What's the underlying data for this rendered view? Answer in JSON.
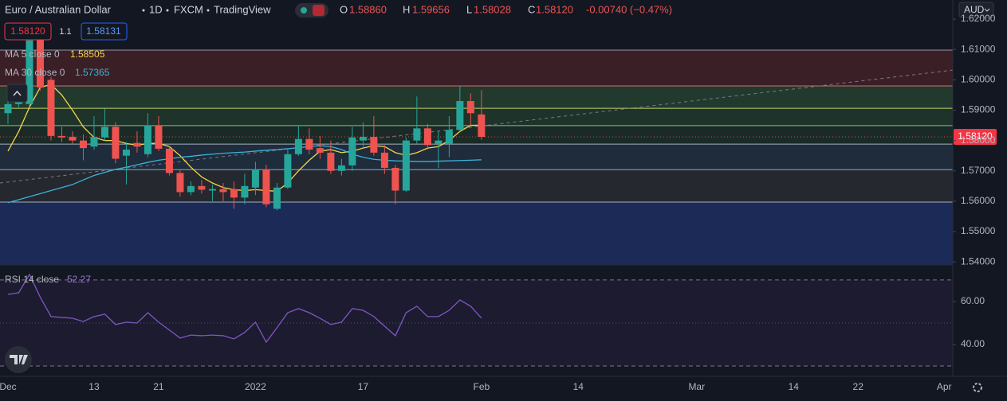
{
  "header": {
    "symbol": "Euro / Australian Dollar",
    "interval": "1D",
    "exchange": "FXCM",
    "source": "TradingView",
    "ohlc": [
      {
        "key": "O",
        "value": "1.58860"
      },
      {
        "key": "H",
        "value": "1.59656"
      },
      {
        "key": "L",
        "value": "1.58028"
      },
      {
        "key": "C",
        "value": "1.58120"
      }
    ],
    "change": "-0.00740 (−0.47%)"
  },
  "order_panel": {
    "sell": "1.58120",
    "spread": "1.1",
    "buy": "1.58131"
  },
  "currency": "AUD",
  "chart_data": [
    {
      "type": "candlestick",
      "x": [
        0,
        1,
        2,
        3,
        4,
        5,
        6,
        7,
        8,
        9,
        10,
        11,
        12,
        13,
        14,
        15,
        16,
        17,
        18,
        19,
        20,
        21,
        22,
        23,
        24,
        25,
        26,
        27,
        28,
        29,
        30,
        31,
        32,
        33,
        34,
        35,
        36,
        37,
        38,
        39,
        40,
        41,
        42,
        43,
        44
      ],
      "open": [
        1.589,
        1.592,
        1.592,
        1.6165,
        1.6,
        1.5815,
        1.5812,
        1.58,
        1.578,
        1.581,
        1.5845,
        1.575,
        1.5792,
        1.5755,
        1.585,
        1.5773,
        1.5693,
        1.563,
        1.565,
        1.5635,
        1.564,
        1.564,
        1.5612,
        1.5645,
        1.5705,
        1.5575,
        1.5645,
        1.5755,
        1.5805,
        1.5775,
        1.576,
        1.57,
        1.5718,
        1.58,
        1.5812,
        1.576,
        1.571,
        1.5635,
        1.58,
        1.584,
        1.579,
        1.579,
        1.5835,
        1.593,
        1.5886
      ],
      "high": [
        1.5935,
        1.5965,
        1.617,
        1.6185,
        1.601,
        1.5845,
        1.583,
        1.582,
        1.588,
        1.5905,
        1.586,
        1.5795,
        1.583,
        1.589,
        1.588,
        1.578,
        1.5705,
        1.5665,
        1.567,
        1.5655,
        1.566,
        1.5665,
        1.569,
        1.573,
        1.572,
        1.566,
        1.577,
        1.585,
        1.584,
        1.5815,
        1.58,
        1.574,
        1.5845,
        1.586,
        1.588,
        1.5785,
        1.572,
        1.581,
        1.5945,
        1.5855,
        1.583,
        1.588,
        1.598,
        1.5955,
        1.59656
      ],
      "low": [
        1.5855,
        1.591,
        1.591,
        1.5965,
        1.58,
        1.5795,
        1.579,
        1.5735,
        1.577,
        1.58,
        1.5725,
        1.5655,
        1.576,
        1.5745,
        1.5765,
        1.5685,
        1.5615,
        1.562,
        1.5625,
        1.56,
        1.56,
        1.5575,
        1.559,
        1.562,
        1.558,
        1.557,
        1.564,
        1.575,
        1.5755,
        1.574,
        1.569,
        1.5685,
        1.57,
        1.5775,
        1.575,
        1.569,
        1.559,
        1.563,
        1.579,
        1.577,
        1.571,
        1.5745,
        1.583,
        1.585,
        1.58028
      ],
      "close": [
        1.592,
        1.594,
        1.613,
        1.5975,
        1.5815,
        1.581,
        1.58,
        1.5775,
        1.5812,
        1.5845,
        1.574,
        1.577,
        1.578,
        1.585,
        1.5773,
        1.5693,
        1.563,
        1.565,
        1.5638,
        1.564,
        1.563,
        1.5612,
        1.565,
        1.5705,
        1.559,
        1.5645,
        1.5755,
        1.5805,
        1.577,
        1.576,
        1.57,
        1.5718,
        1.581,
        1.5812,
        1.576,
        1.571,
        1.5635,
        1.58,
        1.584,
        1.5785,
        1.58,
        1.5835,
        1.593,
        1.589,
        1.5812
      ],
      "up_color": "#26a69a",
      "down_color": "#ef5350",
      "series": [
        {
          "name": "MA 5 close 0",
          "value_label": "1.58505",
          "color": "#f5d547",
          "values": [
            1.5765,
            1.583,
            1.591,
            1.5975,
            1.5985,
            1.595,
            1.59,
            1.5845,
            1.581,
            1.58,
            1.58,
            1.579,
            1.5785,
            1.579,
            1.5791,
            1.578,
            1.575,
            1.5712,
            1.568,
            1.566,
            1.5645,
            1.5638,
            1.5635,
            1.5638,
            1.5635,
            1.5633,
            1.566,
            1.57,
            1.5735,
            1.5765,
            1.577,
            1.576,
            1.5765,
            1.5775,
            1.5783,
            1.578,
            1.576,
            1.5751,
            1.576,
            1.5775,
            1.578,
            1.58,
            1.583,
            1.585,
            1.58505
          ]
        },
        {
          "name": "MA 30 close 0",
          "value_label": "1.57365",
          "color": "#3bb3d6",
          "values": [
            1.5595,
            1.5605,
            1.5615,
            1.5625,
            1.5635,
            1.5645,
            1.5655,
            1.567,
            1.5685,
            1.5695,
            1.5705,
            1.5712,
            1.572,
            1.5728,
            1.5735,
            1.574,
            1.5745,
            1.5748,
            1.5752,
            1.5755,
            1.5758,
            1.576,
            1.5762,
            1.5765,
            1.5768,
            1.577,
            1.5773,
            1.5776,
            1.578,
            1.5783,
            1.578,
            1.577,
            1.5755,
            1.5745,
            1.5738,
            1.5735,
            1.5733,
            1.5732,
            1.5731,
            1.5731,
            1.5732,
            1.5733,
            1.5734,
            1.5735,
            1.57365
          ]
        }
      ],
      "zones": [
        {
          "ylim": [
            1.598,
            1.6098
          ],
          "color": "#3b1f27"
        },
        {
          "ylim": [
            1.5906,
            1.598
          ],
          "color": "#223a2e"
        },
        {
          "ylim": [
            1.5849,
            1.5906
          ],
          "color": "#1e3329"
        },
        {
          "ylim": [
            1.5788,
            1.5849
          ],
          "color": "#1a2b27"
        },
        {
          "ylim": [
            1.5704,
            1.5788
          ],
          "color": "#1e2c3c"
        },
        {
          "ylim": [
            1.5597,
            1.5704
          ],
          "color": "#25282e"
        },
        {
          "ylim": [
            1.539,
            1.5597
          ],
          "color": "#1b2a57"
        }
      ],
      "levels": [
        {
          "value": 1.6098,
          "color": "#9598a1"
        },
        {
          "value": 1.598,
          "color": "#d36a6f"
        },
        {
          "value": 1.5906,
          "color": "#c8d36a"
        },
        {
          "value": 1.5849,
          "color": "#8fbf7a"
        },
        {
          "value": 1.5788,
          "color": "#a8b0bb"
        },
        {
          "value": 1.5704,
          "color": "#7fb0d8"
        },
        {
          "value": 1.5597,
          "color": "#a8b0bb"
        }
      ],
      "trendline": {
        "x": [
          -0.74,
          87.8
        ],
        "y": [
          1.566,
          1.6032
        ],
        "color": "#787b86"
      },
      "last_price_label": "1.58120",
      "last_price_color": "#f23645",
      "xlim": [
        -0.74,
        87.8
      ],
      "xticks": [
        {
          "value": 0,
          "label": "Dec"
        },
        {
          "value": 8,
          "label": "13"
        },
        {
          "value": 14,
          "label": "21"
        },
        {
          "value": 23,
          "label": "2022"
        },
        {
          "value": 33,
          "label": "17"
        },
        {
          "value": 44,
          "label": "Feb"
        },
        {
          "value": 53,
          "label": "14"
        },
        {
          "value": 64,
          "label": "Mar"
        },
        {
          "value": 73,
          "label": "14"
        },
        {
          "value": 79,
          "label": "22"
        },
        {
          "value": 87,
          "label": "Apr"
        }
      ],
      "ylim": [
        1.539,
        1.6263
      ],
      "yticks": [
        {
          "value": 1.62,
          "label": "1.62000"
        },
        {
          "value": 1.61,
          "label": "1.61000"
        },
        {
          "value": 1.6,
          "label": "1.60000"
        },
        {
          "value": 1.59,
          "label": "1.59000"
        },
        {
          "value": 1.58,
          "label": "1.58000"
        },
        {
          "value": 1.57,
          "label": "1.57000"
        },
        {
          "value": 1.56,
          "label": "1.56000"
        },
        {
          "value": 1.55,
          "label": "1.55000"
        },
        {
          "value": 1.54,
          "label": "1.54000"
        }
      ]
    },
    {
      "type": "line",
      "series": [
        {
          "name": "RSI 14 close",
          "value_label": "52.27",
          "color": "#7e57c2",
          "values": [
            63.3,
            64.1,
            72.6,
            62.0,
            53.0,
            52.6,
            52.2,
            50.7,
            53.0,
            54.1,
            49.3,
            50.4,
            50.0,
            54.8,
            50.4,
            46.7,
            43.0,
            44.4,
            44.1,
            44.4,
            44.1,
            42.6,
            45.6,
            50.4,
            41.1,
            47.8,
            54.8,
            56.7,
            54.8,
            52.2,
            49.3,
            50.4,
            56.7,
            55.9,
            53.0,
            48.5,
            44.1,
            54.8,
            57.8,
            53.0,
            53.0,
            55.9,
            60.7,
            57.8,
            52.27
          ]
        }
      ],
      "ylim": [
        25.2,
        77.0
      ],
      "yticks": [
        {
          "value": 60,
          "label": "60.00"
        },
        {
          "value": 40,
          "label": "40.00"
        }
      ],
      "band": [
        30,
        70
      ],
      "midline": 50
    }
  ]
}
